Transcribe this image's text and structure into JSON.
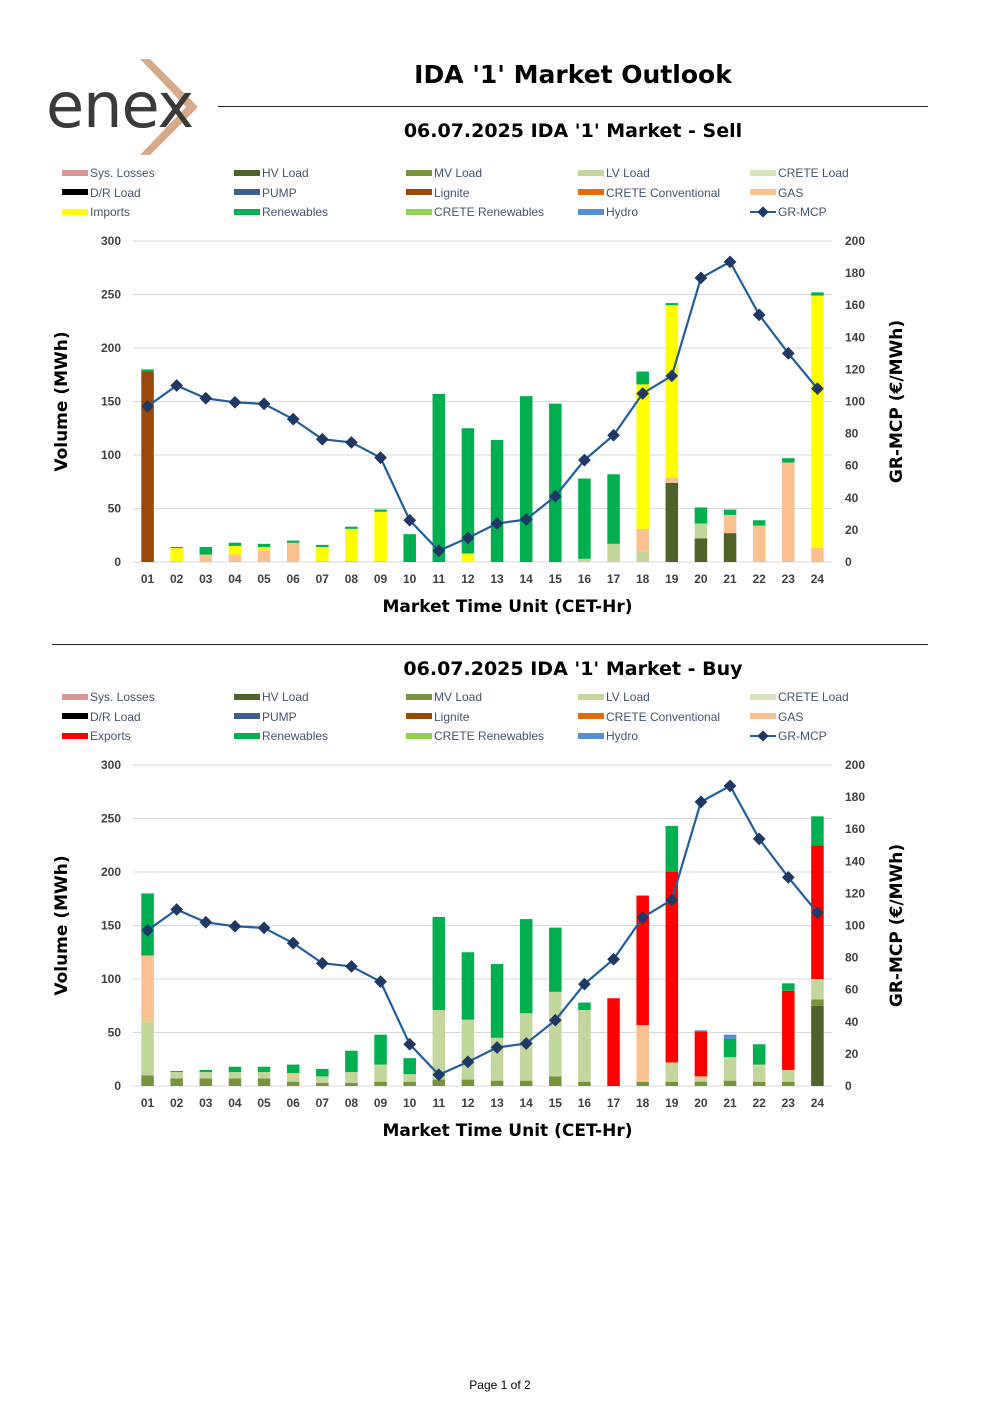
{
  "header": {
    "logo_text": "enex",
    "main_title": "IDA '1' Market Outlook"
  },
  "footer": {
    "page_label": "Page 1 of 2"
  },
  "colors": {
    "sys_losses": "#d99694",
    "hv_load": "#4f6228",
    "mv_load": "#77933c",
    "lv_load": "#c3d69b",
    "crete_load": "#d7e4bd",
    "dr_load": "#000000",
    "pump": "#3f5f8f",
    "lignite": "#984807",
    "crete_conv": "#e36c09",
    "gas": "#fac090",
    "imports": "#ffff00",
    "exports": "#ff0000",
    "renewables": "#00b050",
    "crete_ren": "#92d050",
    "hydro": "#558ed5",
    "mcp": "#1f5f9f",
    "mcp_marker": "#1f3864",
    "grid": "#d9d9d9"
  },
  "legend_sell": [
    {
      "label": "Sys. Losses",
      "key": "sys_losses",
      "kind": "bar"
    },
    {
      "label": "HV Load",
      "key": "hv_load",
      "kind": "bar"
    },
    {
      "label": "MV Load",
      "key": "mv_load",
      "kind": "bar"
    },
    {
      "label": "LV Load",
      "key": "lv_load",
      "kind": "bar"
    },
    {
      "label": "CRETE Load",
      "key": "crete_load",
      "kind": "bar"
    },
    {
      "label": "D/R Load",
      "key": "dr_load",
      "kind": "bar"
    },
    {
      "label": "PUMP",
      "key": "pump",
      "kind": "bar"
    },
    {
      "label": "Lignite",
      "key": "lignite",
      "kind": "bar"
    },
    {
      "label": "CRETE Conventional",
      "key": "crete_conv",
      "kind": "bar"
    },
    {
      "label": "GAS",
      "key": "gas",
      "kind": "bar"
    },
    {
      "label": "Imports",
      "key": "imports",
      "kind": "bar"
    },
    {
      "label": "Renewables",
      "key": "renewables",
      "kind": "bar"
    },
    {
      "label": "CRETE Renewables",
      "key": "crete_ren",
      "kind": "bar"
    },
    {
      "label": "Hydro",
      "key": "hydro",
      "kind": "bar"
    },
    {
      "label": "GR-MCP",
      "key": "mcp",
      "kind": "line"
    }
  ],
  "legend_buy": [
    {
      "label": "Sys. Losses",
      "key": "sys_losses",
      "kind": "bar"
    },
    {
      "label": "HV Load",
      "key": "hv_load",
      "kind": "bar"
    },
    {
      "label": "MV Load",
      "key": "mv_load",
      "kind": "bar"
    },
    {
      "label": "LV Load",
      "key": "lv_load",
      "kind": "bar"
    },
    {
      "label": "CRETE Load",
      "key": "crete_load",
      "kind": "bar"
    },
    {
      "label": "D/R Load",
      "key": "dr_load",
      "kind": "bar"
    },
    {
      "label": "PUMP",
      "key": "pump",
      "kind": "bar"
    },
    {
      "label": "Lignite",
      "key": "lignite",
      "kind": "bar"
    },
    {
      "label": "CRETE Conventional",
      "key": "crete_conv",
      "kind": "bar"
    },
    {
      "label": "GAS",
      "key": "gas",
      "kind": "bar"
    },
    {
      "label": "Exports",
      "key": "exports",
      "kind": "bar"
    },
    {
      "label": "Renewables",
      "key": "renewables",
      "kind": "bar"
    },
    {
      "label": "CRETE Renewables",
      "key": "crete_ren",
      "kind": "bar"
    },
    {
      "label": "Hydro",
      "key": "hydro",
      "kind": "bar"
    },
    {
      "label": "GR-MCP",
      "key": "mcp",
      "kind": "line"
    }
  ],
  "chart_data": [
    {
      "type": "bar",
      "stacked": true,
      "title": "06.07.2025  IDA '1' Market - Sell",
      "xlabel": "Market Time Unit (CET-Hr)",
      "ylabel": "Volume (MWh)",
      "y2label": "GR-MCP (€/MWh)",
      "ylim": [
        0,
        300
      ],
      "yticks": [
        0,
        50,
        100,
        150,
        200,
        250,
        300
      ],
      "y2lim": [
        0,
        200
      ],
      "y2ticks": [
        0,
        20,
        40,
        60,
        80,
        100,
        120,
        140,
        160,
        180,
        200
      ],
      "categories": [
        "01",
        "02",
        "03",
        "04",
        "05",
        "06",
        "07",
        "08",
        "09",
        "10",
        "11",
        "12",
        "13",
        "14",
        "15",
        "16",
        "17",
        "18",
        "19",
        "20",
        "21",
        "22",
        "23",
        "24"
      ],
      "series": [
        {
          "name": "HV Load",
          "key": "hv_load",
          "values": [
            0,
            0,
            0,
            0,
            0,
            0,
            0,
            0,
            0,
            0,
            0,
            0,
            0,
            0,
            0,
            0,
            0,
            0,
            74,
            22,
            27,
            0,
            0,
            0
          ]
        },
        {
          "name": "MV Load",
          "key": "mv_load",
          "values": [
            0,
            0,
            0,
            0,
            0,
            0,
            0,
            0,
            0,
            0,
            0,
            0,
            0,
            0,
            0,
            0,
            0,
            0,
            0,
            0,
            0,
            0,
            0,
            0
          ]
        },
        {
          "name": "LV Load",
          "key": "lv_load",
          "values": [
            0,
            0,
            0,
            0,
            0,
            0,
            0,
            0,
            0,
            0,
            0,
            0,
            0,
            0,
            0,
            3,
            17,
            10,
            0,
            14,
            0,
            0,
            0,
            0
          ]
        },
        {
          "name": "Lignite",
          "key": "lignite",
          "values": [
            178,
            0,
            0,
            0,
            0,
            0,
            0,
            0,
            0,
            0,
            0,
            0,
            0,
            0,
            0,
            0,
            0,
            0,
            0,
            0,
            0,
            0,
            0,
            0
          ]
        },
        {
          "name": "GAS",
          "key": "gas",
          "values": [
            0,
            1,
            7,
            7,
            11,
            18,
            1,
            1,
            1,
            0,
            0,
            0,
            0,
            0,
            0,
            0,
            0,
            21,
            5,
            0,
            17,
            34,
            93,
            13
          ]
        },
        {
          "name": "Imports",
          "key": "imports",
          "values": [
            0,
            12,
            0,
            8,
            3,
            0,
            13,
            30,
            46,
            0,
            0,
            8,
            0,
            0,
            0,
            0,
            0,
            135,
            161,
            0,
            0,
            0,
            0,
            236
          ]
        },
        {
          "name": "Renewables",
          "key": "renewables",
          "values": [
            2,
            1,
            7,
            3,
            3,
            2,
            2,
            2,
            2,
            26,
            157,
            117,
            114,
            155,
            148,
            75,
            65,
            12,
            2,
            15,
            5,
            5,
            4,
            3
          ]
        }
      ],
      "gr_mcp": [
        97,
        110,
        102,
        99.5,
        98.5,
        89,
        76.5,
        74.5,
        65,
        26,
        7,
        15,
        24,
        26.5,
        41,
        63.5,
        79,
        105,
        116,
        177,
        187,
        154,
        130,
        108
      ]
    },
    {
      "type": "bar",
      "stacked": true,
      "title": "06.07.2025  IDA '1' Market - Buy",
      "xlabel": "Market Time Unit (CET-Hr)",
      "ylabel": "Volume (MWh)",
      "y2label": "GR-MCP (€/MWh)",
      "ylim": [
        0,
        300
      ],
      "yticks": [
        0,
        50,
        100,
        150,
        200,
        250,
        300
      ],
      "y2lim": [
        0,
        200
      ],
      "y2ticks": [
        0,
        20,
        40,
        60,
        80,
        100,
        120,
        140,
        160,
        180,
        200
      ],
      "categories": [
        "01",
        "02",
        "03",
        "04",
        "05",
        "06",
        "07",
        "08",
        "09",
        "10",
        "11",
        "12",
        "13",
        "14",
        "15",
        "16",
        "17",
        "18",
        "19",
        "20",
        "21",
        "22",
        "23",
        "24"
      ],
      "series": [
        {
          "name": "HV Load",
          "key": "hv_load",
          "values": [
            0,
            0,
            0,
            0,
            0,
            0,
            0,
            0,
            0,
            0,
            0,
            0,
            0,
            0,
            0,
            0,
            0,
            0,
            0,
            0,
            0,
            0,
            0,
            75
          ]
        },
        {
          "name": "MV Load",
          "key": "mv_load",
          "values": [
            10,
            7,
            7,
            7,
            7,
            4,
            3,
            3,
            4,
            4,
            6,
            6,
            5,
            5,
            9,
            4,
            0,
            4,
            4,
            4,
            5,
            4,
            4,
            6
          ]
        },
        {
          "name": "LV Load",
          "key": "lv_load",
          "values": [
            50,
            6,
            6,
            6,
            6,
            5,
            6,
            10,
            16,
            7,
            65,
            56,
            40,
            63,
            79,
            67,
            0,
            0,
            18,
            3,
            22,
            15,
            11,
            18
          ]
        },
        {
          "name": "GAS",
          "key": "gas",
          "values": [
            62,
            0,
            0,
            0,
            0,
            3,
            0,
            0,
            0,
            0,
            0,
            0,
            0,
            0,
            0,
            0,
            0,
            53,
            0,
            2,
            0,
            1,
            0,
            1
          ]
        },
        {
          "name": "Exports",
          "key": "exports",
          "values": [
            0,
            0,
            0,
            0,
            0,
            0,
            0,
            0,
            0,
            0,
            0,
            0,
            0,
            0,
            0,
            0,
            82,
            121,
            178,
            42,
            0,
            0,
            74,
            125
          ]
        },
        {
          "name": "Renewables",
          "key": "renewables",
          "values": [
            58,
            1,
            2,
            5,
            5,
            8,
            7,
            20,
            28,
            15,
            87,
            63,
            69,
            88,
            60,
            7,
            0,
            0,
            43,
            0,
            17,
            19,
            7,
            27
          ]
        },
        {
          "name": "Hydro",
          "key": "hydro",
          "values": [
            0,
            0,
            0,
            0,
            0,
            0,
            0,
            0,
            0,
            0,
            0,
            0,
            0,
            0,
            0,
            0,
            0,
            0,
            0,
            1,
            4,
            0,
            0,
            0
          ]
        }
      ],
      "gr_mcp": [
        97,
        110,
        102,
        99.5,
        98.5,
        89,
        76.5,
        74.5,
        65,
        26,
        7,
        15,
        24,
        26.5,
        41,
        63.5,
        79,
        105,
        116,
        177,
        187,
        154,
        130,
        108
      ]
    }
  ]
}
